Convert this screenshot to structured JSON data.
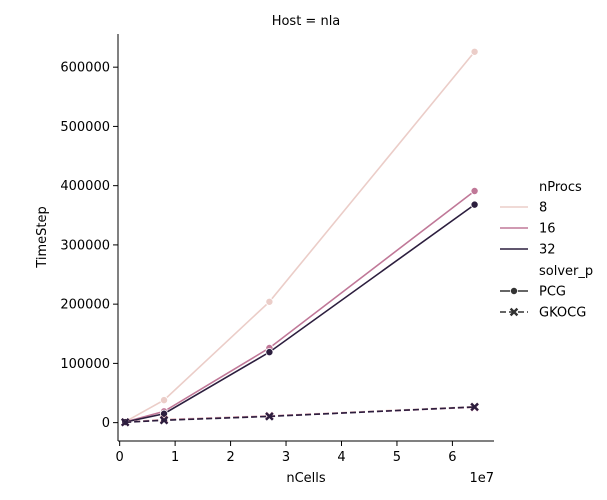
{
  "chart_data": {
    "type": "line",
    "title": "Host = nla",
    "xlabel": "nCells",
    "ylabel": "TimeStep",
    "x_offset_label": "1e7",
    "xlim": [
      -300000,
      67500000
    ],
    "ylim": [
      -31000,
      656000
    ],
    "x_ticks": [
      0,
      10000000,
      20000000,
      30000000,
      40000000,
      50000000,
      60000000
    ],
    "x_tick_labels": [
      "0",
      "1",
      "2",
      "3",
      "4",
      "5",
      "6"
    ],
    "y_ticks": [
      0,
      100000,
      200000,
      300000,
      400000,
      500000,
      600000
    ],
    "y_tick_labels": [
      "0",
      "100000",
      "200000",
      "300000",
      "400000",
      "500000",
      "600000"
    ],
    "x": [
      1000000,
      8000000,
      27000000,
      64000000
    ],
    "grid": false,
    "legend_position": "right",
    "legend": {
      "hue_title": "nProcs",
      "hue_entries": [
        {
          "label": "8",
          "color": "#ebcdc8"
        },
        {
          "label": "16",
          "color": "#c07898"
        },
        {
          "label": "32",
          "color": "#2c1e3e"
        }
      ],
      "style_title": "solver_p",
      "style_entries": [
        {
          "label": "PCG",
          "marker": "circle",
          "dash": "solid"
        },
        {
          "label": "GKOCG",
          "marker": "x",
          "dash": "dashed"
        }
      ]
    },
    "series": [
      {
        "nProcs": "8",
        "solver": "PCG",
        "color": "#ebcdc8",
        "marker": "circle",
        "dash": "solid",
        "values": [
          1500,
          38000,
          204000,
          626000
        ]
      },
      {
        "nProcs": "16",
        "solver": "PCG",
        "color": "#c07898",
        "marker": "circle",
        "dash": "solid",
        "values": [
          1200,
          19000,
          126000,
          391000
        ]
      },
      {
        "nProcs": "32",
        "solver": "PCG",
        "color": "#2c1e3e",
        "marker": "circle",
        "dash": "solid",
        "values": [
          1000,
          15000,
          119000,
          368000
        ]
      },
      {
        "nProcs": "8",
        "solver": "GKOCG",
        "color": "#ebcdc8",
        "marker": "x",
        "dash": "dashed",
        "values": [
          800,
          5500,
          11500,
          27000
        ]
      },
      {
        "nProcs": "16",
        "solver": "GKOCG",
        "color": "#c07898",
        "marker": "x",
        "dash": "dashed",
        "values": [
          700,
          4500,
          11000,
          26000
        ]
      },
      {
        "nProcs": "32",
        "solver": "GKOCG",
        "color": "#2c1e3e",
        "marker": "x",
        "dash": "dashed",
        "values": [
          600,
          4000,
          10500,
          26500
        ]
      }
    ]
  }
}
